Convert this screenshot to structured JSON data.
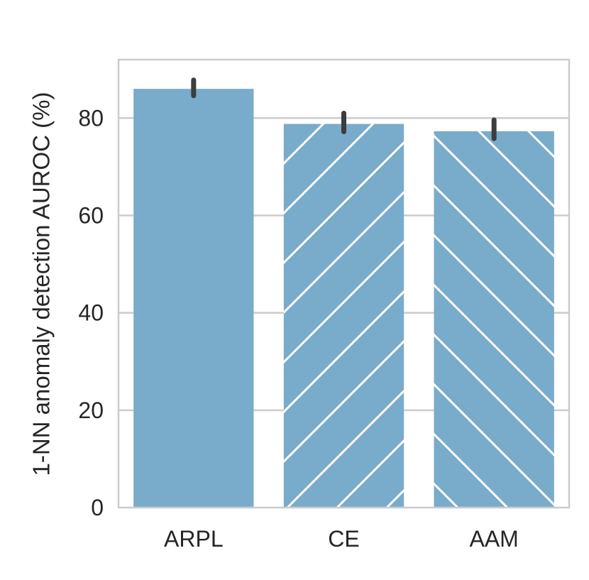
{
  "chart_data": {
    "type": "bar",
    "categories": [
      "ARPL",
      "CE",
      "AAM"
    ],
    "values": [
      86.0,
      78.8,
      77.3
    ],
    "error_bars": [
      [
        84.6,
        87.8
      ],
      [
        77.2,
        81.0
      ],
      [
        75.8,
        79.6
      ]
    ],
    "ylabel": "1-NN anomaly detection AUROC (%)",
    "xlabel": "",
    "ylim": [
      0,
      92
    ],
    "yticks": [
      0,
      20,
      40,
      60,
      80
    ],
    "grid": "horizontal",
    "bar_color": "#79abcb",
    "hatches": [
      "none",
      "forward-diagonal",
      "backward-diagonal"
    ],
    "error_bar_color": "#3d3d3d",
    "grid_color": "#cccccc",
    "axis_edge_color": "#cccccc"
  }
}
